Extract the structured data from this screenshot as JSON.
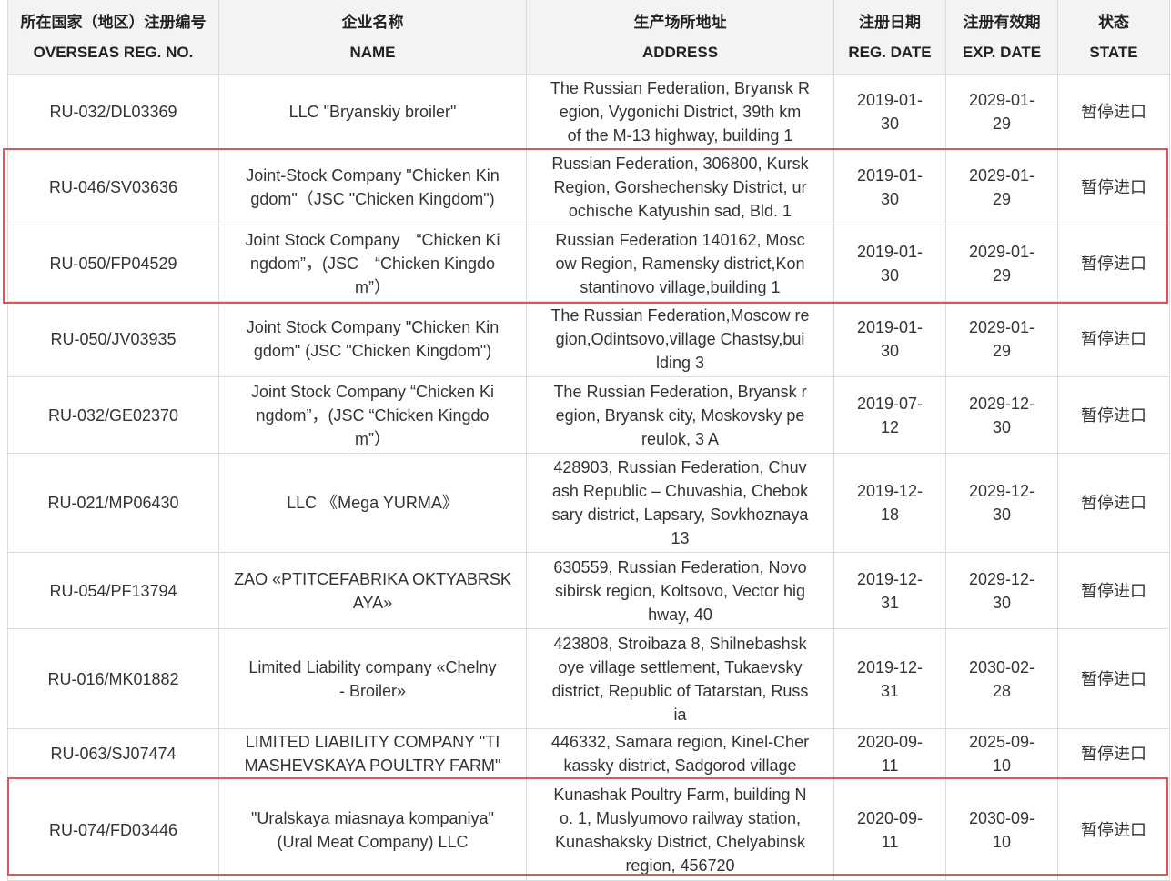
{
  "headers": [
    {
      "zh": "所在国家（地区）注册编号",
      "en": "OVERSEAS REG. NO."
    },
    {
      "zh": "企业名称",
      "en": "NAME"
    },
    {
      "zh": "生产场所地址",
      "en": "ADDRESS"
    },
    {
      "zh": "注册日期",
      "en": "REG. DATE"
    },
    {
      "zh": "注册有效期",
      "en": "EXP. DATE"
    },
    {
      "zh": "状态",
      "en": "STATE"
    }
  ],
  "highlight_color": "#e05555",
  "rows": [
    {
      "reg_no": "RU-032/DL03369",
      "name": "LLC \"Bryanskiy broiler\"",
      "address": "The Russian Federation, Bryansk R\negion, Vygonichi District, 39th km\nof the M-13 highway, building 1",
      "reg_date": "2019-01-\n30",
      "exp_date": "2029-01-\n29",
      "state": "暂停进口"
    },
    {
      "reg_no": "RU-046/SV03636",
      "name": "Joint-Stock Company \"Chicken Kin\ngdom\"（JSC \"Chicken Kingdom\")",
      "address": "Russian Federation, 306800, Kursk\nRegion, Gorshechensky District, ur\nochische Katyushin sad, Bld. 1",
      "reg_date": "2019-01-\n30",
      "exp_date": "2029-01-\n29",
      "state": "暂停进口"
    },
    {
      "reg_no": "RU-050/FP04529",
      "name": "Joint Stock Company　“Chicken Ki\nngdom”，(JSC　“Chicken Kingdo\nm”）",
      "address": "Russian Federation 140162, Mosc\now Region, Ramensky district,Kon\nstantinovo village,building 1",
      "reg_date": "2019-01-\n30",
      "exp_date": "2029-01-\n29",
      "state": "暂停进口"
    },
    {
      "reg_no": "RU-050/JV03935",
      "name": "Joint Stock Company \"Chicken Kin\ngdom\" (JSC \"Chicken Kingdom\")",
      "address": "The Russian Federation,Moscow re\ngion,Odintsovo,village Chastsy,bui\nlding 3",
      "reg_date": "2019-01-\n30",
      "exp_date": "2029-01-\n29",
      "state": "暂停进口"
    },
    {
      "reg_no": "RU-032/GE02370",
      "name": "Joint Stock Company “Chicken Ki\nngdom”，(JSC “Chicken Kingdo\nm”）",
      "address": "The Russian Federation, Bryansk r\negion, Bryansk city, Moskovsky pe\nreulok, 3 A",
      "reg_date": "2019-07-\n12",
      "exp_date": "2029-12-\n30",
      "state": "暂停进口"
    },
    {
      "reg_no": "RU-021/MP06430",
      "name": "LLC 《Mega YURMA》",
      "address": "428903, Russian Federation, Chuv\nash Republic – Chuvashia, Chebok\nsary district, Lapsary, Sovkhoznaya\n13",
      "reg_date": "2019-12-\n18",
      "exp_date": "2029-12-\n30",
      "state": "暂停进口"
    },
    {
      "reg_no": "RU-054/PF13794",
      "name": "ZAO «PTITCEFABRIKA OKTYABRSK\nAYA»",
      "address": "630559, Russian Federation, Novo\nsibirsk region, Koltsovo, Vector hig\nhway, 40",
      "reg_date": "2019-12-\n31",
      "exp_date": "2029-12-\n30",
      "state": "暂停进口"
    },
    {
      "reg_no": "RU-016/MK01882",
      "name": "Limited Liability company «Chelny\n- Broiler»",
      "address": "423808, Stroibaza 8, Shilnebashsk\noye village settlement, Tukaevsky\ndistrict, Republic of Tatarstan, Russ\nia",
      "reg_date": "2019-12-\n31",
      "exp_date": "2030-02-\n28",
      "state": "暂停进口"
    },
    {
      "reg_no": "RU-063/SJ07474",
      "name": "LIMITED LIABILITY COMPANY \"TI\nMASHEVSKAYA POULTRY FARM\"",
      "address": "446332, Samara region, Kinel-Cher\nkassky district, Sadgorod village",
      "reg_date": "2020-09-\n11",
      "exp_date": "2025-09-\n10",
      "state": "暂停进口"
    },
    {
      "reg_no": "RU-074/FD03446",
      "name": "\"Uralskaya miasnaya kompaniya\"\n(Ural Meat Company) LLC",
      "address": "Kunashak Poultry Farm, building N\no. 1, Muslyumovo railway station,\nKunashaksky District, Chelyabinsk\nregion, 456720",
      "reg_date": "2020-09-\n11",
      "exp_date": "2030-09-\n10",
      "state": "暂停进口"
    }
  ]
}
